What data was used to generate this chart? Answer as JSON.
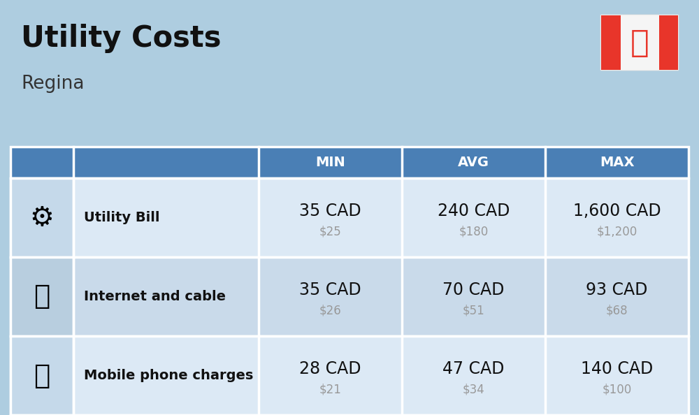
{
  "title": "Utility Costs",
  "subtitle": "Regina",
  "background_color": "#aecde0",
  "header_bg_color": "#4a7fb5",
  "header_text_color": "#ffffff",
  "row_bg_color_1": "#dce9f5",
  "row_bg_color_2": "#c9daea",
  "icon_col_bg_1": "#c5d9ea",
  "icon_col_bg_2": "#b8cedf",
  "cell_border_color": "#ffffff",
  "columns": [
    "MIN",
    "AVG",
    "MAX"
  ],
  "rows": [
    {
      "label": "Utility Bill",
      "values_cad": [
        "35 CAD",
        "240 CAD",
        "1,600 CAD"
      ],
      "values_usd": [
        "$25",
        "$180",
        "$1,200"
      ]
    },
    {
      "label": "Internet and cable",
      "values_cad": [
        "35 CAD",
        "70 CAD",
        "93 CAD"
      ],
      "values_usd": [
        "$26",
        "$51",
        "$68"
      ]
    },
    {
      "label": "Mobile phone charges",
      "values_cad": [
        "28 CAD",
        "47 CAD",
        "140 CAD"
      ],
      "values_usd": [
        "$21",
        "$34",
        "$100"
      ]
    }
  ],
  "title_fontsize": 30,
  "subtitle_fontsize": 19,
  "header_fontsize": 14,
  "label_fontsize": 14,
  "value_fontsize": 17,
  "subvalue_fontsize": 12,
  "flag_red": "#e8352a",
  "flag_white": "#f5f5f5",
  "label_color": "#111111",
  "subvalue_color": "#999999"
}
